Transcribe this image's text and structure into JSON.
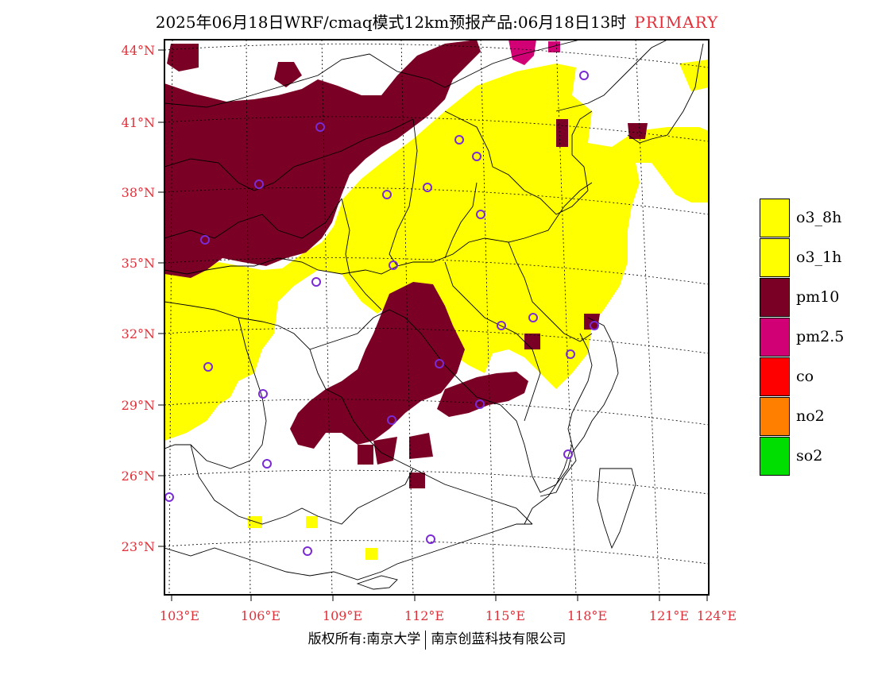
{
  "title": {
    "main": "2025年06月18日WRF/cmaq模式12km预报产品:06月18日13时",
    "tag": "PRIMARY"
  },
  "lat_labels": [
    "44°N",
    "41°N",
    "38°N",
    "35°N",
    "32°N",
    "29°N",
    "26°N",
    "23°N"
  ],
  "lon_labels": [
    "103°E",
    "106°E",
    "109°E",
    "112°E",
    "115°E",
    "118°E",
    "121°E",
    "124°E"
  ],
  "legend": [
    {
      "label": "o3_8h",
      "color": "#ffff00"
    },
    {
      "label": "o3_1h",
      "color": "#ffff00"
    },
    {
      "label": "pm10",
      "color": "#7b0026"
    },
    {
      "label": "pm2.5",
      "color": "#d10075"
    },
    {
      "label": "co",
      "color": "#ff0000"
    },
    {
      "label": "no2",
      "color": "#ff7f00"
    },
    {
      "label": "so2",
      "color": "#00dd00"
    }
  ],
  "footer": {
    "left": "版权所有:南京大学",
    "right": "南京创蓝科技有限公司"
  },
  "colors": {
    "label_red": "#e0303a",
    "o3": "#ffff00",
    "pm10": "#7b0026",
    "pm25": "#d10075",
    "station_marker": "#7a2bd6"
  }
}
